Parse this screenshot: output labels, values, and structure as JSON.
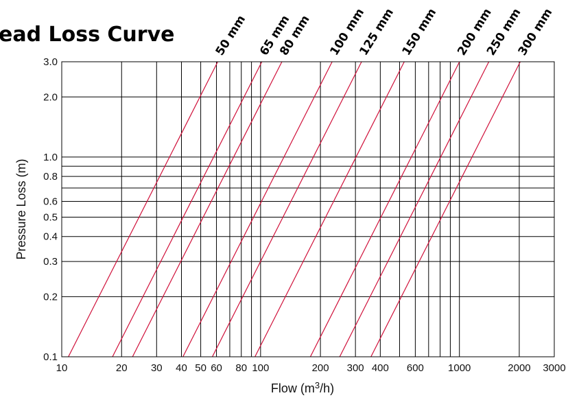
{
  "chart_data": {
    "type": "line",
    "title": "ead Loss Curve",
    "xlabel_main": "Flow (m",
    "xlabel_sup": "3",
    "xlabel_end": "/h)",
    "ylabel": "Pressure Loss (m)",
    "x_scale": "log",
    "y_scale": "log",
    "xlim": [
      10,
      3000
    ],
    "ylim": [
      0.1,
      3.0
    ],
    "grid": true,
    "line_color": "#d0103a",
    "x_ticks": [
      {
        "value": 10,
        "label": "10"
      },
      {
        "value": 20,
        "label": "20"
      },
      {
        "value": 30,
        "label": "30"
      },
      {
        "value": 40,
        "label": "40"
      },
      {
        "value": 50,
        "label": "50"
      },
      {
        "value": 60,
        "label": "60"
      },
      {
        "value": 80,
        "label": "80"
      },
      {
        "value": 100,
        "label": "100"
      },
      {
        "value": 200,
        "label": "200"
      },
      {
        "value": 300,
        "label": "300"
      },
      {
        "value": 400,
        "label": "400"
      },
      {
        "value": 600,
        "label": "600"
      },
      {
        "value": 1000,
        "label": "1000"
      },
      {
        "value": 2000,
        "label": "2000"
      },
      {
        "value": 3000,
        "label": "3000"
      }
    ],
    "x_grid": [
      10,
      20,
      30,
      40,
      50,
      60,
      70,
      80,
      90,
      100,
      200,
      300,
      400,
      500,
      600,
      700,
      800,
      900,
      1000,
      2000,
      3000
    ],
    "y_ticks": [
      {
        "value": 0.1,
        "label": "0.1"
      },
      {
        "value": 0.2,
        "label": "0.2"
      },
      {
        "value": 0.3,
        "label": "0.3"
      },
      {
        "value": 0.4,
        "label": "0.4"
      },
      {
        "value": 0.5,
        "label": "0.5"
      },
      {
        "value": 0.6,
        "label": "0.6"
      },
      {
        "value": 0.8,
        "label": "0.8"
      },
      {
        "value": 1.0,
        "label": "1.0"
      },
      {
        "value": 2.0,
        "label": "2.0"
      },
      {
        "value": 3.0,
        "label": "3.0"
      }
    ],
    "y_grid": [
      0.1,
      0.2,
      0.3,
      0.4,
      0.5,
      0.6,
      0.7,
      0.8,
      0.9,
      1.0,
      2.0,
      3.0
    ],
    "series": [
      {
        "name": "50 mm",
        "x": [
          10.8,
          60.9
        ]
      },
      {
        "name": "65 mm",
        "x": [
          18.0,
          101.5
        ]
      },
      {
        "name": "80 mm",
        "x": [
          22.7,
          128
        ]
      },
      {
        "name": "100 mm",
        "x": [
          40.7,
          229
        ]
      },
      {
        "name": "125 mm",
        "x": [
          57.2,
          322
        ]
      },
      {
        "name": "150 mm",
        "x": [
          93.7,
          528
        ]
      },
      {
        "name": "200 mm",
        "x": [
          178,
          1001
        ]
      },
      {
        "name": "250 mm",
        "x": [
          250,
          1406
        ]
      },
      {
        "name": "300 mm",
        "x": [
          359,
          2023
        ]
      }
    ],
    "series_y": [
      0.1,
      3.0
    ]
  }
}
